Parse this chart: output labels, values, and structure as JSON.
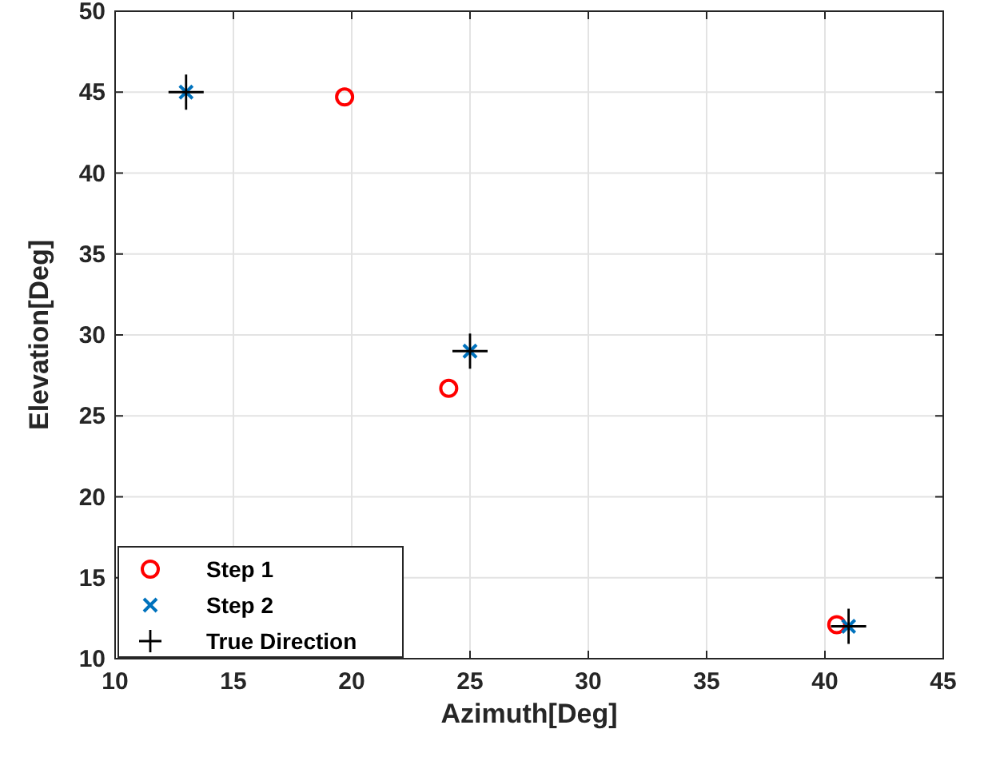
{
  "chart_data": {
    "type": "scatter",
    "xlabel": "Azimuth[Deg]",
    "ylabel": "Elevation[Deg]",
    "xlim": [
      10,
      45
    ],
    "xticks": [
      10,
      15,
      20,
      25,
      30,
      35,
      40,
      45
    ],
    "ylim": [
      10,
      50
    ],
    "yticks": [
      10,
      15,
      20,
      25,
      30,
      35,
      40,
      45,
      50
    ],
    "grid": true,
    "legend": "bottom left",
    "series": [
      {
        "name": "Step 1",
        "color": "#ff0000",
        "marker": "circle",
        "x": [
          19.7,
          24.1,
          40.5
        ],
        "values": [
          44.7,
          26.7,
          12.1
        ]
      },
      {
        "name": "Step 2",
        "color": "#0072bd",
        "marker": "cross",
        "x": [
          13,
          25,
          41
        ],
        "values": [
          45,
          29,
          12
        ]
      },
      {
        "name": "True Direction",
        "color": "#000000",
        "marker": "cross",
        "x": [
          13,
          25,
          41
        ],
        "values": [
          45,
          29,
          12
        ]
      }
    ]
  }
}
